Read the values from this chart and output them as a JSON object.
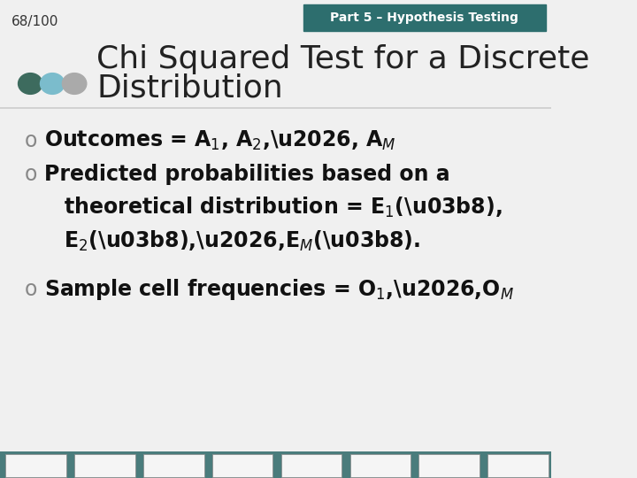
{
  "slide_number": "68/100",
  "header_label": "Part 5 – Hypothesis Testing",
  "title_line1": "Chi Squared Test for a Discrete",
  "title_line2": "Distribution",
  "bullet1": "Outcomes = A",
  "bullet2_line1": "Predicted probabilities based on a",
  "bullet2_line2": "theoretical distribution = E",
  "bullet2_line3": "E",
  "bullet3": "Sample cell frequencies = O",
  "bg_color": "#f0f0f0",
  "header_bg": "#2d6e6e",
  "header_text_color": "#ffffff",
  "title_color": "#222222",
  "bullet_color": "#111111",
  "slide_number_color": "#333333",
  "dot_colors": [
    "#3d6b5e",
    "#7bbccc",
    "#aaaaaa"
  ],
  "bottom_bar_color": "#4a7c7c",
  "font_size_title": 26,
  "font_size_bullet": 17,
  "font_size_header": 10,
  "font_size_slide_num": 11
}
